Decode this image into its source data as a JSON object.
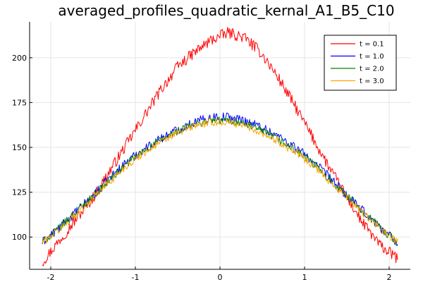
{
  "chart_data": {
    "type": "line",
    "title": "averaged_profiles_quadratic_kernal_A1_B5_C10",
    "xlabel": "",
    "ylabel": "",
    "xlim": [
      -2.25,
      2.25
    ],
    "ylim": [
      82,
      220
    ],
    "x_ticks": [
      -2,
      -1,
      0,
      1,
      2
    ],
    "x_tick_labels": [
      "-2",
      "-1",
      "0",
      "1",
      "2"
    ],
    "y_ticks": [
      100,
      125,
      150,
      175,
      200
    ],
    "y_tick_labels": [
      "100",
      "125",
      "150",
      "175",
      "200"
    ],
    "grid": true,
    "legend_position": "top-right",
    "series": [
      {
        "name": "t = 0.1",
        "color": "#ff0000",
        "x": [
          -2.1,
          -1.9,
          -1.7,
          -1.5,
          -1.3,
          -1.1,
          -0.9,
          -0.7,
          -0.5,
          -0.3,
          -0.1,
          0.1,
          0.3,
          0.5,
          0.7,
          0.9,
          1.1,
          1.3,
          1.5,
          1.7,
          1.9,
          2.1
        ],
        "values": [
          86,
          98,
          110,
          122,
          137,
          152,
          167,
          182,
          195,
          203,
          210,
          214,
          211,
          202,
          188,
          172,
          155,
          138,
          122,
          107,
          95,
          88
        ]
      },
      {
        "name": "t = 1.0",
        "color": "#0000ff",
        "x": [
          -2.1,
          -1.9,
          -1.7,
          -1.5,
          -1.3,
          -1.1,
          -0.9,
          -0.7,
          -0.5,
          -0.3,
          -0.1,
          0.1,
          0.3,
          0.5,
          0.7,
          0.9,
          1.1,
          1.3,
          1.5,
          1.7,
          1.9,
          2.1
        ],
        "values": [
          97,
          105,
          114,
          123,
          133,
          142,
          149,
          155,
          160,
          164,
          167,
          167,
          165,
          161,
          156,
          150,
          142,
          133,
          123,
          114,
          105,
          97
        ]
      },
      {
        "name": "t = 2.0",
        "color": "#008000",
        "x": [
          -2.1,
          -1.9,
          -1.7,
          -1.5,
          -1.3,
          -1.1,
          -0.9,
          -0.7,
          -0.5,
          -0.3,
          -0.1,
          0.1,
          0.3,
          0.5,
          0.7,
          0.9,
          1.1,
          1.3,
          1.5,
          1.7,
          1.9,
          2.1
        ],
        "values": [
          97,
          105,
          114,
          123,
          132,
          141,
          148,
          154,
          159,
          163,
          165,
          165,
          163,
          159,
          154,
          148,
          141,
          132,
          123,
          114,
          105,
          97
        ]
      },
      {
        "name": "t = 3.0",
        "color": "#ffa500",
        "x": [
          -2.1,
          -1.9,
          -1.7,
          -1.5,
          -1.3,
          -1.1,
          -0.9,
          -0.7,
          -0.5,
          -0.3,
          -0.1,
          0.1,
          0.3,
          0.5,
          0.7,
          0.9,
          1.1,
          1.3,
          1.5,
          1.7,
          1.9,
          2.1
        ],
        "values": [
          97,
          104,
          113,
          122,
          131,
          140,
          147,
          153,
          158,
          162,
          164,
          164,
          162,
          158,
          153,
          147,
          140,
          131,
          122,
          113,
          104,
          97
        ]
      }
    ]
  }
}
